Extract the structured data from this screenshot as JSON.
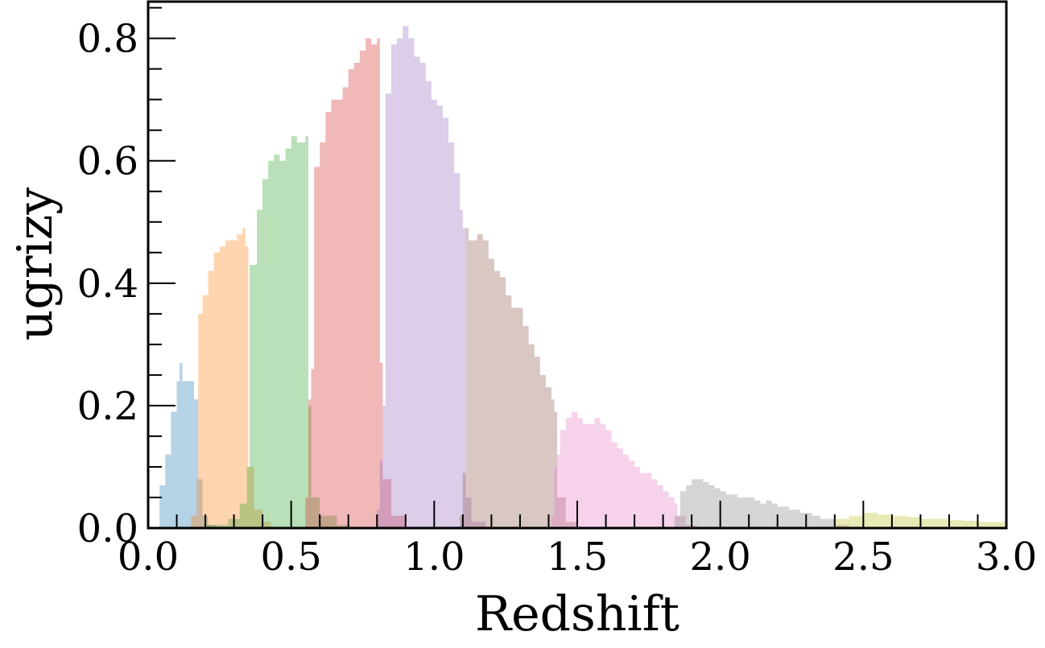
{
  "chart_data": {
    "type": "area",
    "title": "",
    "xlabel": "Redshift",
    "ylabel": "ugrizy",
    "xlim": [
      0.0,
      3.0
    ],
    "ylim": [
      0.0,
      0.86
    ],
    "xticks": [
      "0.0",
      "0.5",
      "1.0",
      "1.5",
      "2.0",
      "2.5",
      "3.0"
    ],
    "yticks": [
      "0.0",
      "0.2",
      "0.4",
      "0.6",
      "0.8"
    ],
    "grid": false,
    "legend": "none",
    "series": [
      {
        "color": "#1f77b4",
        "x": [
          0.02,
          0.04,
          0.06,
          0.08,
          0.1,
          0.11,
          0.12,
          0.14,
          0.16,
          0.175,
          0.19,
          0.21,
          0.24
        ],
        "y": [
          0.0,
          0.07,
          0.12,
          0.19,
          0.24,
          0.27,
          0.24,
          0.24,
          0.21,
          0.08,
          0.02,
          0.005,
          0.0
        ]
      },
      {
        "color": "#ff7f0e",
        "x": [
          0.12,
          0.15,
          0.17,
          0.175,
          0.19,
          0.21,
          0.23,
          0.25,
          0.27,
          0.29,
          0.31,
          0.33,
          0.34,
          0.35,
          0.37,
          0.4,
          0.43
        ],
        "y": [
          0.0,
          0.02,
          0.08,
          0.35,
          0.38,
          0.42,
          0.45,
          0.46,
          0.47,
          0.47,
          0.48,
          0.49,
          0.46,
          0.1,
          0.03,
          0.01,
          0.0
        ]
      },
      {
        "color": "#2ca02c",
        "x": [
          0.1,
          0.2,
          0.28,
          0.32,
          0.345,
          0.355,
          0.38,
          0.4,
          0.42,
          0.44,
          0.46,
          0.48,
          0.5,
          0.52,
          0.54,
          0.55,
          0.56,
          0.57,
          0.6,
          0.66,
          0.7
        ],
        "y": [
          0.0,
          0.005,
          0.015,
          0.04,
          0.1,
          0.43,
          0.52,
          0.57,
          0.6,
          0.61,
          0.6,
          0.62,
          0.64,
          0.63,
          0.63,
          0.64,
          0.2,
          0.05,
          0.02,
          0.005,
          0.0
        ]
      },
      {
        "color": "#d62728",
        "x": [
          0.5,
          0.55,
          0.56,
          0.57,
          0.58,
          0.6,
          0.62,
          0.64,
          0.66,
          0.68,
          0.7,
          0.72,
          0.74,
          0.76,
          0.78,
          0.8,
          0.81,
          0.82,
          0.85,
          0.9
        ],
        "y": [
          0.0,
          0.05,
          0.21,
          0.26,
          0.59,
          0.63,
          0.68,
          0.7,
          0.7,
          0.72,
          0.75,
          0.76,
          0.78,
          0.8,
          0.79,
          0.8,
          0.27,
          0.08,
          0.02,
          0.0
        ]
      },
      {
        "color": "#9467bd",
        "x": [
          0.76,
          0.8,
          0.81,
          0.82,
          0.83,
          0.85,
          0.87,
          0.89,
          0.91,
          0.93,
          0.95,
          0.97,
          0.99,
          1.01,
          1.03,
          1.05,
          1.07,
          1.09,
          1.1,
          1.11,
          1.13,
          1.18
        ],
        "y": [
          0.0,
          0.03,
          0.11,
          0.2,
          0.71,
          0.79,
          0.8,
          0.82,
          0.8,
          0.77,
          0.76,
          0.73,
          0.7,
          0.69,
          0.67,
          0.63,
          0.58,
          0.52,
          0.49,
          0.05,
          0.01,
          0.0
        ]
      },
      {
        "color": "#8c564b",
        "x": [
          1.05,
          1.09,
          1.1,
          1.11,
          1.12,
          1.13,
          1.15,
          1.17,
          1.19,
          1.21,
          1.23,
          1.25,
          1.27,
          1.29,
          1.31,
          1.33,
          1.35,
          1.37,
          1.39,
          1.41,
          1.42,
          1.43,
          1.46,
          1.5
        ],
        "y": [
          0.0,
          0.02,
          0.09,
          0.49,
          0.47,
          0.47,
          0.48,
          0.47,
          0.44,
          0.42,
          0.41,
          0.38,
          0.36,
          0.36,
          0.33,
          0.3,
          0.28,
          0.25,
          0.23,
          0.21,
          0.19,
          0.05,
          0.01,
          0.0
        ]
      },
      {
        "color": "#e377c2",
        "x": [
          1.36,
          1.41,
          1.42,
          1.43,
          1.44,
          1.46,
          1.48,
          1.5,
          1.52,
          1.54,
          1.56,
          1.58,
          1.6,
          1.62,
          1.64,
          1.66,
          1.68,
          1.7,
          1.72,
          1.74,
          1.76,
          1.78,
          1.8,
          1.82,
          1.84,
          1.85,
          1.88,
          1.92
        ],
        "y": [
          0.0,
          0.02,
          0.1,
          0.12,
          0.16,
          0.18,
          0.19,
          0.18,
          0.17,
          0.17,
          0.18,
          0.17,
          0.16,
          0.14,
          0.13,
          0.12,
          0.11,
          0.1,
          0.09,
          0.09,
          0.08,
          0.07,
          0.06,
          0.05,
          0.04,
          0.02,
          0.005,
          0.0
        ]
      },
      {
        "color": "#7f7f7f",
        "x": [
          1.8,
          1.84,
          1.86,
          1.88,
          1.9,
          1.92,
          1.94,
          1.96,
          1.98,
          2.0,
          2.02,
          2.04,
          2.06,
          2.08,
          2.1,
          2.12,
          2.14,
          2.16,
          2.18,
          2.2,
          2.24,
          2.28,
          2.32,
          2.35,
          2.4,
          2.45
        ],
        "y": [
          0.0,
          0.02,
          0.06,
          0.07,
          0.08,
          0.08,
          0.075,
          0.07,
          0.065,
          0.06,
          0.055,
          0.055,
          0.05,
          0.05,
          0.05,
          0.045,
          0.04,
          0.045,
          0.04,
          0.035,
          0.03,
          0.025,
          0.02,
          0.015,
          0.005,
          0.0
        ]
      },
      {
        "color": "#bcbd22",
        "x": [
          2.3,
          2.4,
          2.45,
          2.5,
          2.55,
          2.6,
          2.65,
          2.7,
          2.75,
          2.8,
          2.85,
          2.9,
          2.95,
          3.0
        ],
        "y": [
          0.0,
          0.015,
          0.02,
          0.025,
          0.022,
          0.02,
          0.018,
          0.015,
          0.015,
          0.013,
          0.012,
          0.01,
          0.01,
          0.008
        ]
      }
    ]
  }
}
